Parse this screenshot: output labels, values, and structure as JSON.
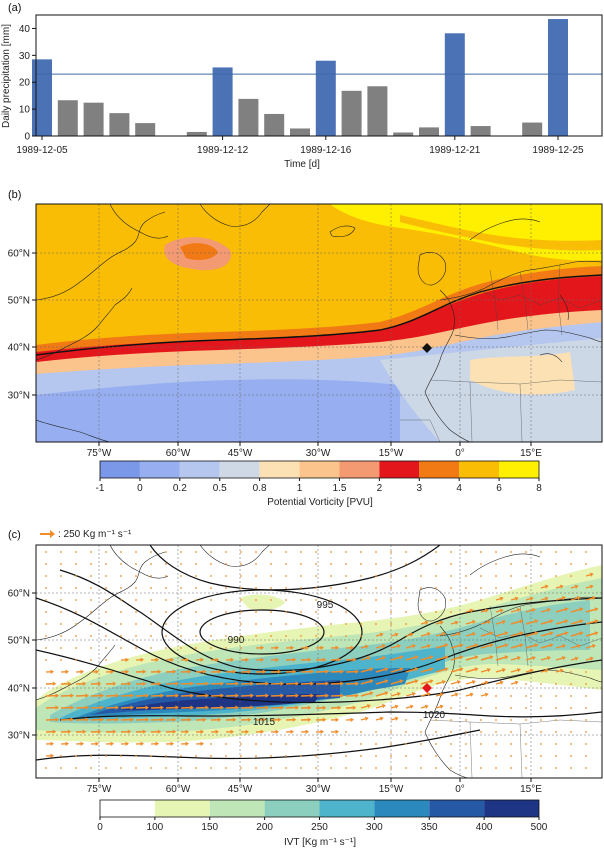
{
  "panel_a": {
    "label": "(a)",
    "chart_data": {
      "type": "bar",
      "ylabel": "Daily precipitation [mm]",
      "xlabel": "Time [d]",
      "ylim": [
        0,
        45
      ],
      "yticks": [
        0,
        10,
        20,
        30,
        40
      ],
      "threshold": 23,
      "xtick_labels": [
        {
          "day": 0,
          "label": "1989-12-05"
        },
        {
          "day": 7,
          "label": "1989-12-12"
        },
        {
          "day": 11,
          "label": "1989-12-16"
        },
        {
          "day": 16,
          "label": "1989-12-21"
        },
        {
          "day": 20,
          "label": "1989-12-25"
        }
      ],
      "days": [
        0,
        1,
        2,
        3,
        4,
        5,
        6,
        7,
        8,
        9,
        10,
        11,
        12,
        13,
        14,
        15,
        16,
        17,
        18,
        19,
        20
      ],
      "values": [
        28.5,
        13.3,
        12.4,
        8.5,
        4.8,
        0,
        1.5,
        25.5,
        13.8,
        8.2,
        2.8,
        28,
        16.8,
        18.5,
        1.3,
        3.2,
        38.2,
        3.7,
        0,
        5,
        43.5
      ],
      "highlight": [
        true,
        false,
        false,
        false,
        false,
        false,
        false,
        true,
        false,
        false,
        false,
        true,
        false,
        false,
        false,
        false,
        true,
        false,
        false,
        false,
        true
      ],
      "colors": {
        "highlight": "#4a72b5",
        "normal": "#808080",
        "threshold": "#3e6aa6"
      }
    }
  },
  "panel_b": {
    "label": "(b)",
    "lat_labels": [
      "60°N",
      "50°N",
      "40°N",
      "30°N"
    ],
    "lon_labels": [
      "75°W",
      "60°W",
      "45°W",
      "30°W",
      "15°W",
      "0°",
      "15°E"
    ],
    "colorbar": {
      "title": "Potential Vorticity [PVU]",
      "ticks": [
        "-1",
        "0",
        "0.2",
        "0.5",
        "0.8",
        "1",
        "1.5",
        "2",
        "3",
        "4",
        "6",
        "8"
      ],
      "colors": [
        "#7b97e8",
        "#97aff0",
        "#b5c6ef",
        "#cfd9e6",
        "#fbe1b4",
        "#fbc48c",
        "#f39a72",
        "#e3161c",
        "#f17a14",
        "#f9bd05",
        "#ffef00"
      ]
    }
  },
  "panel_c": {
    "label": "(c)",
    "vector_legend": ": 250 Kg m⁻¹ s⁻¹",
    "lat_labels": [
      "60°N",
      "50°N",
      "40°N",
      "30°N"
    ],
    "lon_labels": [
      "75°W",
      "60°W",
      "45°W",
      "30°W",
      "15°W",
      "0°",
      "15°E"
    ],
    "contour_labels": [
      "995",
      "990",
      "1015",
      "1020"
    ],
    "colorbar": {
      "title": "IVT [Kg m⁻¹ s⁻¹]",
      "ticks": [
        "0",
        "100",
        "150",
        "200",
        "250",
        "300",
        "350",
        "400",
        "500"
      ],
      "colors": [
        "#ffffff",
        "#e7f5b4",
        "#bfe6b6",
        "#8ccfbe",
        "#4eb4cb",
        "#2b89bd",
        "#2659a5",
        "#1e3485"
      ]
    }
  }
}
